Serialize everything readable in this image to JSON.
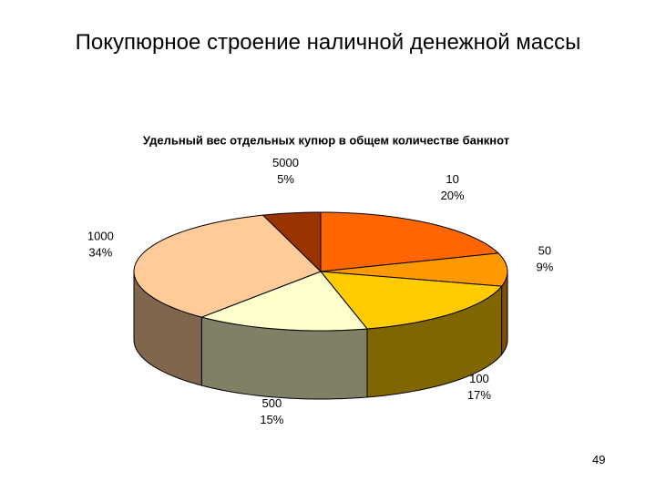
{
  "title": "Покупюрное строение наличной денежной массы",
  "page_number": "49",
  "chart_data": {
    "type": "pie3d",
    "subtitle": "Удельный вес отдельных купюр в общем количестве банкнот",
    "categories": [
      "10",
      "50",
      "100",
      "500",
      "1000",
      "5000"
    ],
    "values": [
      20,
      9,
      17,
      15,
      34,
      5
    ],
    "value_labels": [
      "20%",
      "9%",
      "17%",
      "15%",
      "34%",
      "5%"
    ],
    "colors": [
      "#ff6600",
      "#ff9900",
      "#ffcc00",
      "#ffffcc",
      "#ffcc99",
      "#993300"
    ]
  }
}
